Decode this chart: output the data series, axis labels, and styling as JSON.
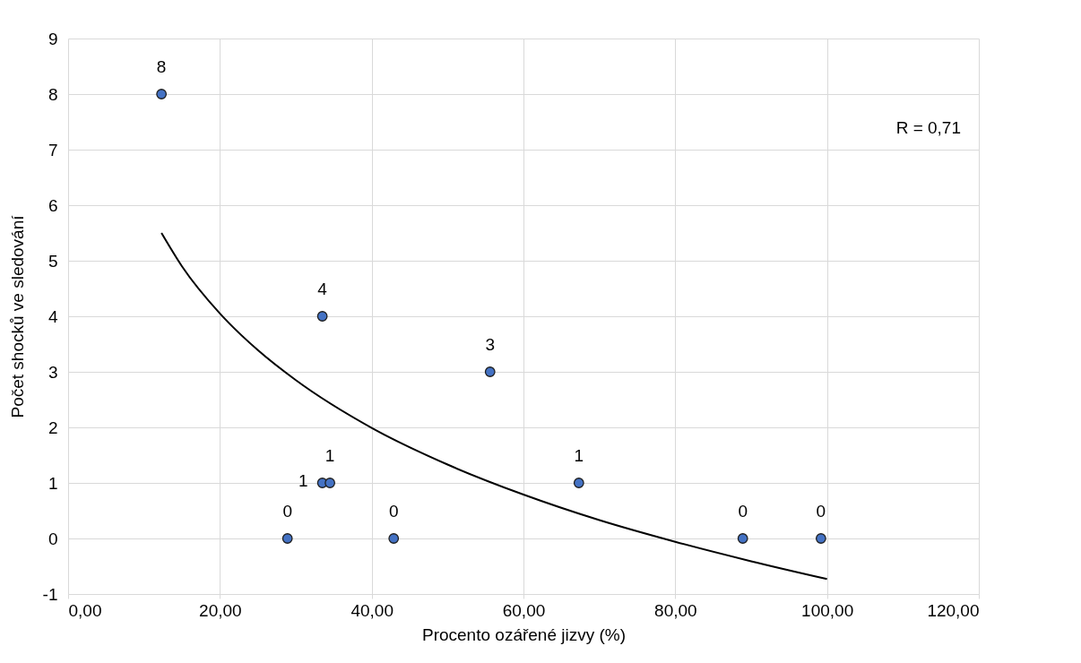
{
  "chart_data": {
    "type": "scatter",
    "xlabel": "Procento ozářené jizvy (%)",
    "ylabel": "Počet shocků ve sledování",
    "annotations": [
      "R = 0,71"
    ],
    "series": [
      {
        "color": "#4472c4",
        "marker": "circle",
        "x": [
          12.3,
          33.5,
          55.6,
          33.5,
          34.5,
          67.3,
          28.9,
          42.9,
          88.9,
          99.2
        ],
        "values": [
          8,
          4,
          3,
          1,
          1,
          1,
          0,
          0,
          0,
          0
        ],
        "value_labels": [
          "8",
          "4",
          "3",
          "1",
          "1",
          "1",
          "0",
          "0",
          "0",
          "0"
        ]
      },
      {
        "type": "line",
        "color": "#000000",
        "x": [
          12.3,
          15,
          20,
          25,
          30,
          40,
          50,
          60,
          70,
          80,
          90,
          100
        ],
        "values": [
          5.5,
          4.9,
          4.05,
          3.39,
          2.85,
          1.99,
          1.33,
          0.79,
          0.33,
          -0.06,
          -0.41,
          -0.73
        ]
      }
    ],
    "grid": true,
    "xlim": [
      0,
      120
    ],
    "xticks": [
      {
        "value": 0,
        "label": "0,00"
      },
      {
        "value": 20,
        "label": "20,00"
      },
      {
        "value": 40,
        "label": "40,00"
      },
      {
        "value": 60,
        "label": "60,00"
      },
      {
        "value": 80,
        "label": "80,00"
      },
      {
        "value": 100,
        "label": "100,00"
      },
      {
        "value": 120,
        "label": "120,00"
      }
    ],
    "ylim": [
      -1,
      9
    ],
    "yticks": [
      -1,
      0,
      1,
      2,
      3,
      4,
      5,
      6,
      7,
      8,
      9
    ]
  }
}
